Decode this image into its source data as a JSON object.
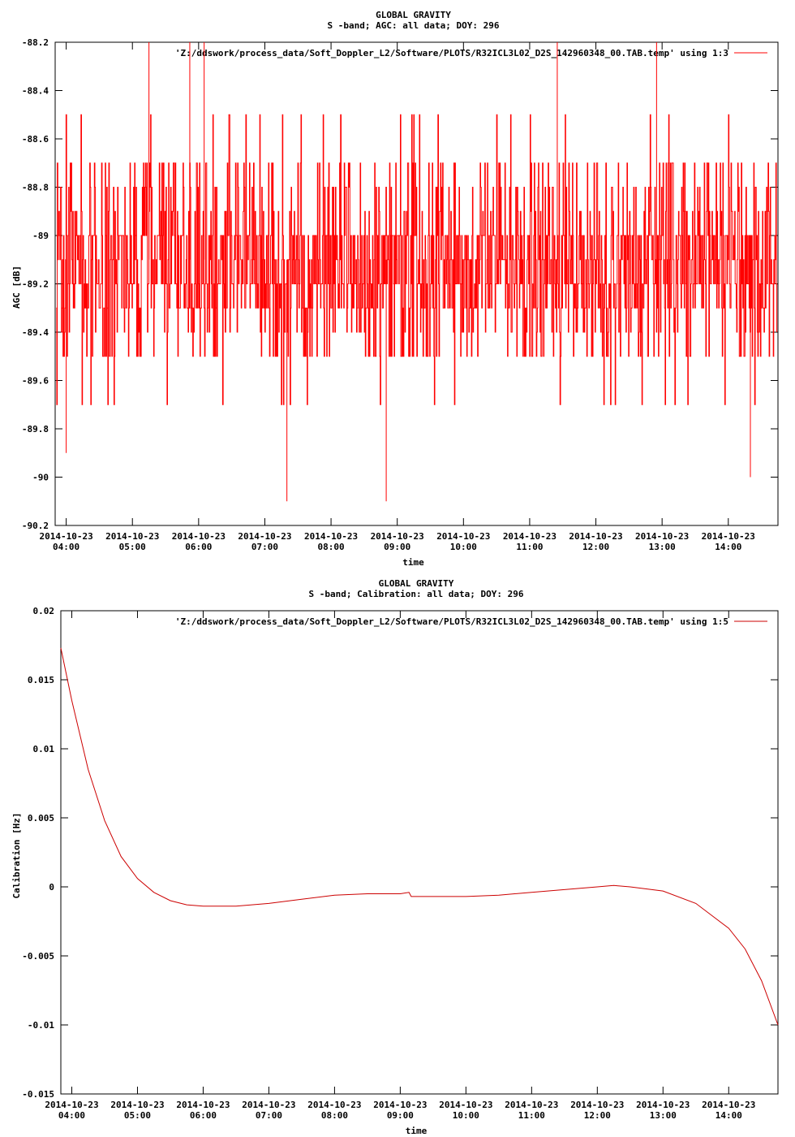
{
  "chart_data": [
    {
      "type": "line",
      "title": "GLOBAL GRAVITY",
      "subtitle": "S -band; AGC: all data; DOY: 296",
      "xlabel": "time",
      "ylabel": "AGC [dB]",
      "ylim": [
        -90.2,
        -88.2
      ],
      "y_ticks": [
        "-88.2",
        "-88.4",
        "-88.6",
        "-88.8",
        "-89",
        "-89.2",
        "-89.4",
        "-89.6",
        "-89.8",
        "-90",
        "-90.2"
      ],
      "x_tick_dates": [
        "2014-10-23",
        "2014-10-23",
        "2014-10-23",
        "2014-10-23",
        "2014-10-23",
        "2014-10-23",
        "2014-10-23",
        "2014-10-23",
        "2014-10-23",
        "2014-10-23",
        "2014-10-23"
      ],
      "x_tick_times": [
        "04:00",
        "05:00",
        "06:00",
        "07:00",
        "08:00",
        "09:00",
        "10:00",
        "11:00",
        "12:00",
        "13:00",
        "14:00"
      ],
      "xlim": [
        "2014-10-23 03:50",
        "2014-10-23 14:45"
      ],
      "legend_position": "top-right",
      "grid": false,
      "series_color": "#ff0000",
      "series": [
        {
          "name": "'Z:/ddswork/process_data/Soft_Doppler_L2/Software/PLOTS/R32ICL3L02_D2S_142960348_00.TAB.temp' using 1:3",
          "mean": -89.1,
          "noise_range": [
            -89.5,
            -88.7
          ],
          "extremes": [
            {
              "x": "2014-10-23 04:00",
              "y": -89.9
            },
            {
              "x": "2014-10-23 05:15",
              "y": -88.2
            },
            {
              "x": "2014-10-23 05:52",
              "y": -88.2
            },
            {
              "x": "2014-10-23 06:05",
              "y": -88.2
            },
            {
              "x": "2014-10-23 07:20",
              "y": -90.1
            },
            {
              "x": "2014-10-23 08:50",
              "y": -90.1
            },
            {
              "x": "2014-10-23 11:25",
              "y": -88.2
            },
            {
              "x": "2014-10-23 12:55",
              "y": -88.2
            },
            {
              "x": "2014-10-23 14:20",
              "y": -90.0
            }
          ]
        }
      ]
    },
    {
      "type": "line",
      "title": "GLOBAL GRAVITY",
      "subtitle": "S -band; Calibration: all data; DOY: 296",
      "xlabel": "time",
      "ylabel": "Calibration [Hz]",
      "ylim": [
        -0.015,
        0.02
      ],
      "y_ticks": [
        "0.02",
        "0.015",
        "0.01",
        "0.005",
        "0",
        "-0.005",
        "-0.01",
        "-0.015"
      ],
      "x_tick_dates": [
        "2014-10-23",
        "2014-10-23",
        "2014-10-23",
        "2014-10-23",
        "2014-10-23",
        "2014-10-23",
        "2014-10-23",
        "2014-10-23",
        "2014-10-23",
        "2014-10-23",
        "2014-10-23"
      ],
      "x_tick_times": [
        "04:00",
        "05:00",
        "06:00",
        "07:00",
        "08:00",
        "09:00",
        "10:00",
        "11:00",
        "12:00",
        "13:00",
        "14:00"
      ],
      "xlim": [
        "2014-10-23 03:50",
        "2014-10-23 14:45"
      ],
      "legend_position": "top-right",
      "grid": false,
      "series_color": "#cc0000",
      "series": [
        {
          "name": "'Z:/ddswork/process_data/Soft_Doppler_L2/Software/PLOTS/R32ICL3L02_D2S_142960348_00.TAB.temp' using 1:5",
          "x": [
            "2014-10-23 03:50",
            "2014-10-23 04:00",
            "2014-10-23 04:15",
            "2014-10-23 04:30",
            "2014-10-23 04:45",
            "2014-10-23 05:00",
            "2014-10-23 05:15",
            "2014-10-23 05:30",
            "2014-10-23 05:45",
            "2014-10-23 06:00",
            "2014-10-23 06:30",
            "2014-10-23 07:00",
            "2014-10-23 07:30",
            "2014-10-23 08:00",
            "2014-10-23 08:30",
            "2014-10-23 09:00",
            "2014-10-23 09:08",
            "2014-10-23 09:10",
            "2014-10-23 09:30",
            "2014-10-23 10:00",
            "2014-10-23 10:30",
            "2014-10-23 11:00",
            "2014-10-23 11:30",
            "2014-10-23 12:00",
            "2014-10-23 12:15",
            "2014-10-23 12:30",
            "2014-10-23 13:00",
            "2014-10-23 13:30",
            "2014-10-23 14:00",
            "2014-10-23 14:15",
            "2014-10-23 14:30",
            "2014-10-23 14:45"
          ],
          "values": [
            0.0173,
            0.0135,
            0.0085,
            0.0048,
            0.0022,
            0.0006,
            -0.0004,
            -0.001,
            -0.0013,
            -0.0014,
            -0.0014,
            -0.0012,
            -0.0009,
            -0.0006,
            -0.0005,
            -0.0005,
            -0.0004,
            -0.0007,
            -0.0007,
            -0.0007,
            -0.0006,
            -0.0004,
            -0.0002,
            0.0,
            0.0001,
            0.0,
            -0.0003,
            -0.0012,
            -0.003,
            -0.0045,
            -0.0068,
            -0.01
          ]
        }
      ]
    }
  ]
}
